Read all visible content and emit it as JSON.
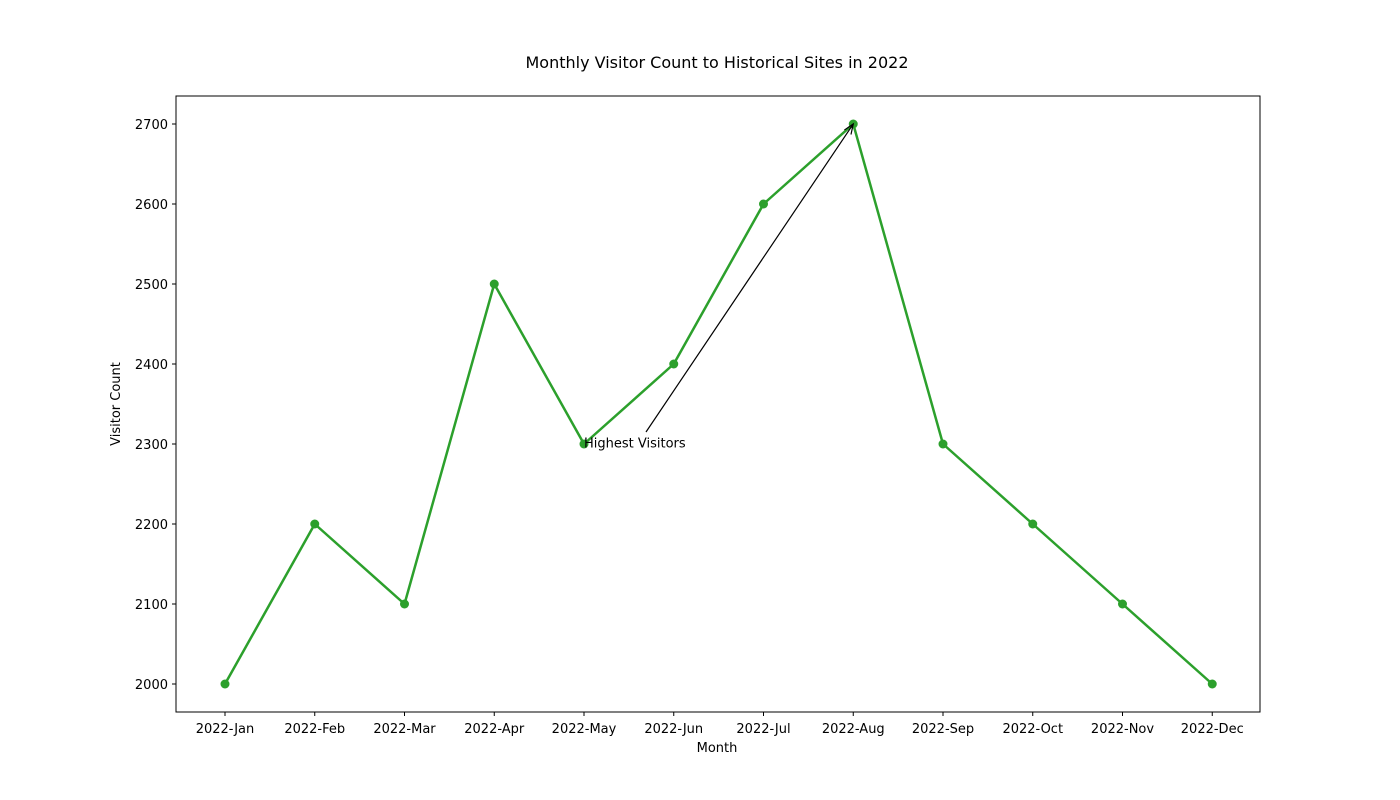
{
  "chart_data": {
    "type": "line",
    "title": "Monthly Visitor Count to Historical Sites in 2022",
    "xlabel": "Month",
    "ylabel": "Visitor Count",
    "categories": [
      "2022-Jan",
      "2022-Feb",
      "2022-Mar",
      "2022-Apr",
      "2022-May",
      "2022-Jun",
      "2022-Jul",
      "2022-Aug",
      "2022-Sep",
      "2022-Oct",
      "2022-Nov",
      "2022-Dec"
    ],
    "series": [
      {
        "values": [
          2000,
          2200,
          2100,
          2500,
          2300,
          2400,
          2600,
          2700,
          2300,
          2200,
          2100,
          2000
        ],
        "color": "#2ca02c",
        "marker": "circle"
      }
    ],
    "ylim": [
      1965,
      2735
    ],
    "yticks": [
      2000,
      2100,
      2200,
      2300,
      2400,
      2500,
      2600,
      2700
    ],
    "grid": false,
    "annotation": {
      "text": "Highest Visitors",
      "point": {
        "x": "2022-Aug",
        "y": 2700
      },
      "text_anchor": {
        "x": "2022-May",
        "y": 2300
      },
      "arrow_color": "#000000"
    }
  }
}
